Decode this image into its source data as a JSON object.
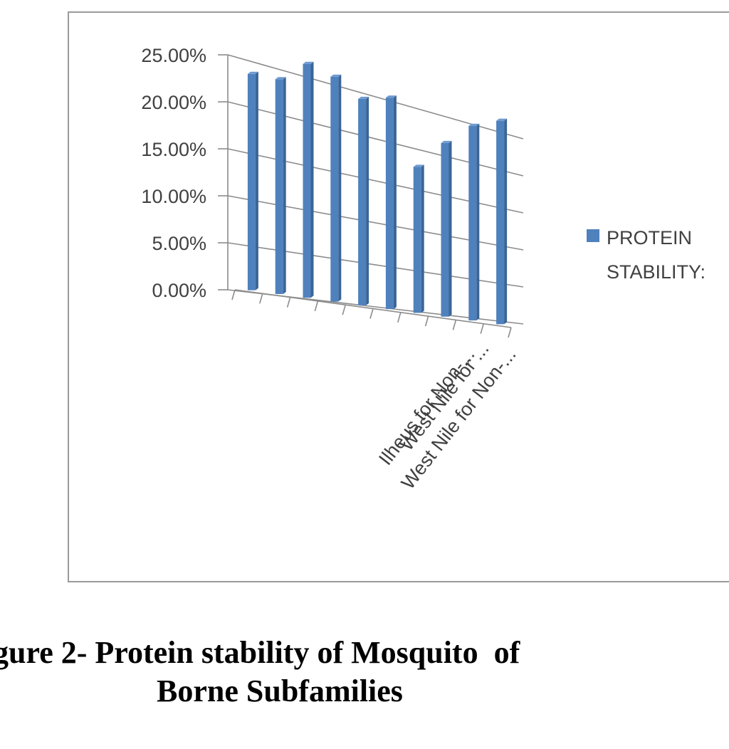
{
  "caption": {
    "line1": "gure 2- Protein stability of Mosquito  of",
    "line2": "Borne Subfamilies"
  },
  "chart_data": {
    "type": "bar",
    "style": "3d-column",
    "y_ticks": [
      "0.00%",
      "5.00%",
      "10.00%",
      "15.00%",
      "20.00%",
      "25.00%"
    ],
    "ylim": [
      0,
      25
    ],
    "grid": true,
    "legend_position": "right",
    "series": [
      {
        "name": "PROTEIN STABILITY:",
        "color": "#4f81bd",
        "values": [
          23.0,
          22.8,
          24.8,
          23.8,
          21.8,
          22.3,
          15.3,
          18.2,
          20.4,
          21.3
        ]
      }
    ],
    "visible_category_labels": [
      "Ilheus for Non-...",
      "West  Nile for ...",
      "West  Nile for Non-..."
    ]
  }
}
